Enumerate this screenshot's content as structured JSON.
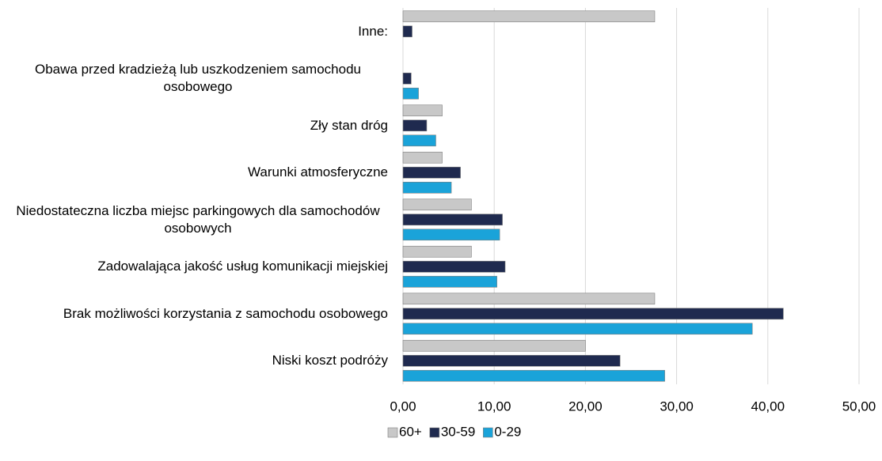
{
  "chart_data": {
    "type": "barh",
    "categories": [
      "Inne:",
      "Obawa przed kradzieżą lub uszkodzeniem samochodu osobowego",
      "Zły stan dróg",
      "Warunki atmosferyczne",
      "Niedostateczna liczba miejsc parkingowych dla samochodów osobowych",
      "Zadowalająca jakość usług komunikacji miejskiej",
      "Brak możliwości korzystania z samochodu osobowego",
      "Niski koszt podróży"
    ],
    "series": [
      {
        "name": "60+",
        "color": "#c8c8c8",
        "values": [
          27.6,
          0,
          4.3,
          4.3,
          7.5,
          7.5,
          27.6,
          20.0
        ]
      },
      {
        "name": "30-59",
        "color": "#1f2a4f",
        "values": [
          1.0,
          0.9,
          2.6,
          6.3,
          10.9,
          11.2,
          41.7,
          23.8
        ]
      },
      {
        "name": "0-29",
        "color": "#1aa3d9",
        "values": [
          0,
          1.7,
          3.6,
          5.3,
          10.6,
          10.3,
          38.3,
          28.7
        ]
      }
    ],
    "xlim": [
      0,
      50
    ],
    "xticks": [
      {
        "value": 0,
        "label": "0,00"
      },
      {
        "value": 10,
        "label": "10,00"
      },
      {
        "value": 20,
        "label": "20,00"
      },
      {
        "value": 30,
        "label": "30,00"
      },
      {
        "value": 40,
        "label": "40,00"
      },
      {
        "value": 50,
        "label": "50,00"
      }
    ],
    "grid": true,
    "legend": "bottom"
  }
}
